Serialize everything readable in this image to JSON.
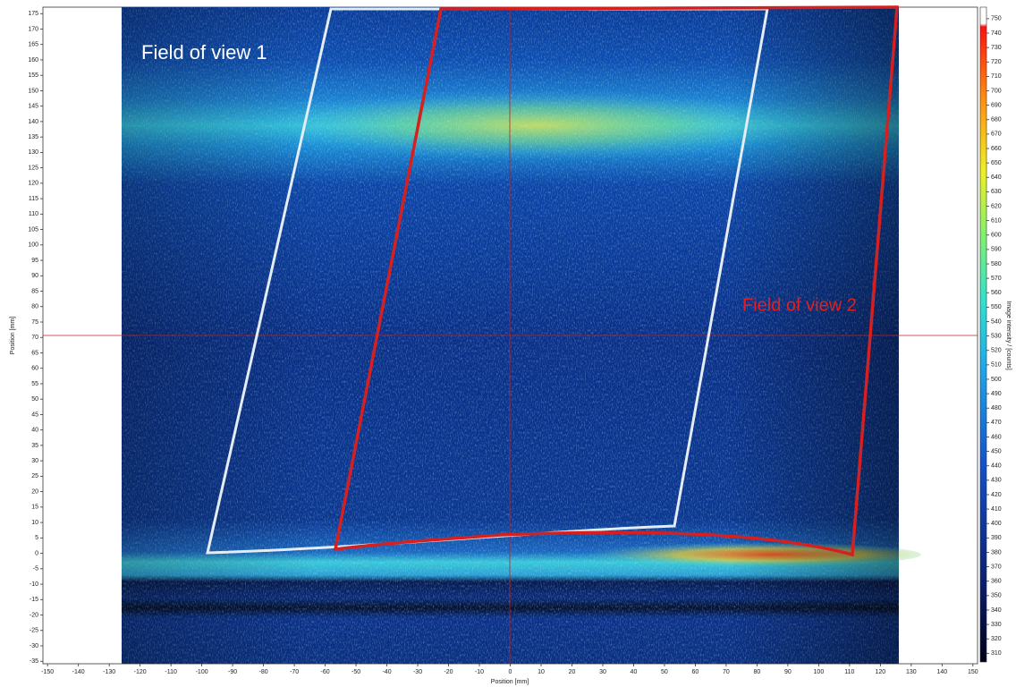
{
  "chart_data": {
    "type": "image",
    "xlabel": "Position [mm]",
    "ylabel": "Position [mm]",
    "colorbar_label": "Image intensity / [counts]",
    "annotations": [
      "Field of view 1",
      "Field of view 2"
    ],
    "xlim": [
      -151.5,
      151.5
    ],
    "xticks": [
      -150,
      -140,
      -130,
      -120,
      -110,
      -100,
      -90,
      -80,
      -70,
      -60,
      -50,
      -40,
      -30,
      -20,
      -10,
      0,
      10,
      20,
      30,
      40,
      50,
      60,
      70,
      80,
      90,
      100,
      110,
      120,
      130,
      140,
      150
    ],
    "ylim": [
      -35.8,
      177.1
    ],
    "yticks": [
      -35,
      -30,
      -25,
      -20,
      -15,
      -10,
      -5,
      0,
      5,
      10,
      15,
      20,
      25,
      30,
      35,
      40,
      45,
      50,
      55,
      60,
      65,
      70,
      75,
      80,
      85,
      90,
      95,
      100,
      105,
      110,
      115,
      120,
      125,
      130,
      135,
      140,
      145,
      150,
      155,
      160,
      165,
      170,
      175
    ],
    "clim": [
      304,
      758
    ],
    "cticks": [
      310,
      320,
      330,
      340,
      350,
      360,
      370,
      380,
      390,
      400,
      410,
      420,
      430,
      440,
      450,
      460,
      470,
      480,
      490,
      500,
      510,
      520,
      530,
      540,
      550,
      560,
      570,
      580,
      590,
      600,
      610,
      620,
      630,
      640,
      650,
      660,
      670,
      680,
      690,
      700,
      710,
      720,
      730,
      740,
      750
    ]
  }
}
